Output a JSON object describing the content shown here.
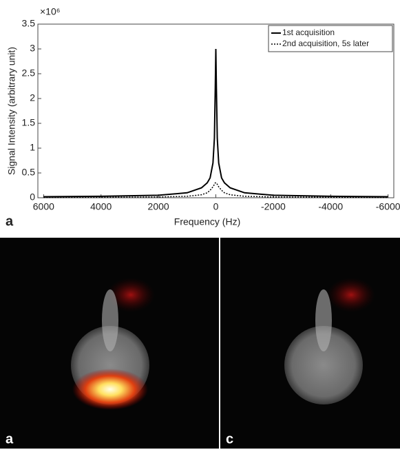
{
  "chart_data": {
    "type": "line",
    "y_label": "Signal Intensity (arbitrary unit)",
    "x_label": "Frequency (Hz)",
    "y_multiplier": "×10⁶",
    "panel_label": "a",
    "x": [
      6000,
      4000,
      2000,
      1000,
      500,
      300,
      200,
      100,
      50,
      20,
      0,
      -20,
      -50,
      -100,
      -200,
      -300,
      -500,
      -1000,
      -2000,
      -4000,
      -6000
    ],
    "series": [
      {
        "name": "1st acquisition",
        "color": "#000000",
        "dash": "solid",
        "values": [
          0.02,
          0.03,
          0.05,
          0.1,
          0.2,
          0.3,
          0.4,
          0.7,
          1.2,
          2.2,
          3.0,
          2.2,
          1.2,
          0.7,
          0.4,
          0.3,
          0.2,
          0.1,
          0.05,
          0.03,
          0.02
        ]
      },
      {
        "name": "2nd acquisition, 5s later",
        "color": "#000000",
        "dash": "dotted",
        "values": [
          0.005,
          0.008,
          0.015,
          0.03,
          0.06,
          0.1,
          0.15,
          0.22,
          0.27,
          0.3,
          0.3,
          0.3,
          0.27,
          0.22,
          0.15,
          0.1,
          0.06,
          0.03,
          0.015,
          0.008,
          0.005
        ]
      }
    ],
    "xlim": [
      6200,
      -6200
    ],
    "ylim": [
      0,
      3.5
    ],
    "xticks": [
      6000,
      4000,
      2000,
      0,
      -2000,
      -4000,
      -6000
    ],
    "yticks": [
      0,
      0.5,
      1,
      1.5,
      2,
      2.5,
      3,
      3.5
    ],
    "legend": "top-right",
    "grid": false
  },
  "images": [
    {
      "label": "a"
    },
    {
      "label": "c"
    }
  ]
}
